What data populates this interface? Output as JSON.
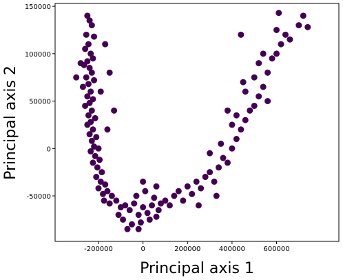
{
  "chart_data": {
    "type": "scatter",
    "xlabel": "Principal axis 1",
    "ylabel": "Principal axis 2",
    "color": "#440154",
    "xlim": [
      -395000,
      880000
    ],
    "ylim": [
      -98000,
      153000
    ],
    "xticks": [
      -200000,
      0,
      200000,
      400000,
      600000
    ],
    "yticks": [
      -50000,
      0,
      50000,
      100000,
      150000
    ],
    "x": [
      -250000,
      -240000,
      -230000,
      -255000,
      -220000,
      -245000,
      -260000,
      -235000,
      -225000,
      -250000,
      -265000,
      -240000,
      -230000,
      -255000,
      -220000,
      -245000,
      -270000,
      -235000,
      -250000,
      -225000,
      -240000,
      -260000,
      -230000,
      -245000,
      -215000,
      -235000,
      -250000,
      -225000,
      -240000,
      -210000,
      -230000,
      -220000,
      -200000,
      -235000,
      -215000,
      -195000,
      -225000,
      -205000,
      -185000,
      -210000,
      -190000,
      -170000,
      -200000,
      -180000,
      -160000,
      -140000,
      -175000,
      -300000,
      -170000,
      -150000,
      -130000,
      -280000,
      -160000,
      -190000,
      -150000,
      -120000,
      -100000,
      -80000,
      -60000,
      -40000,
      -20000,
      0,
      20000,
      40000,
      60000,
      80000,
      100000,
      -90000,
      -50000,
      -10000,
      30000,
      70000,
      -110000,
      -30000,
      10000,
      50000,
      -70000,
      -20000,
      120000,
      0,
      60000,
      140000,
      160000,
      180000,
      200000,
      220000,
      240000,
      260000,
      280000,
      300000,
      320000,
      340000,
      360000,
      300000,
      380000,
      400000,
      420000,
      350000,
      440000,
      400000,
      460000,
      480000,
      420000,
      500000,
      520000,
      460000,
      540000,
      500000,
      560000,
      520000,
      580000,
      600000,
      540000,
      620000,
      600000,
      640000,
      660000,
      700000,
      720000,
      740000,
      610000,
      440000,
      450000,
      380000,
      330000,
      250000,
      560000
    ],
    "y": [
      140000,
      135000,
      130000,
      120000,
      118000,
      110000,
      105000,
      100000,
      95000,
      92000,
      88000,
      85000,
      80000,
      75000,
      72000,
      68000,
      65000,
      60000,
      55000,
      52000,
      48000,
      45000,
      40000,
      35000,
      32000,
      28000,
      25000,
      20000,
      15000,
      12000,
      8000,
      2000,
      0,
      -3000,
      -8000,
      -12000,
      -15000,
      -20000,
      -25000,
      -30000,
      -35000,
      -38000,
      -42000,
      -48000,
      -45000,
      -50000,
      -55000,
      75000,
      110000,
      80000,
      40000,
      90000,
      20000,
      60000,
      -58000,
      -55000,
      -62000,
      -60000,
      -65000,
      -58000,
      -70000,
      -62000,
      -68000,
      -60000,
      -72000,
      -58000,
      -55000,
      -75000,
      -80000,
      -78000,
      -75000,
      -65000,
      -70000,
      -50000,
      -45000,
      -52000,
      -85000,
      -85000,
      -60000,
      -35000,
      -40000,
      -50000,
      -45000,
      -55000,
      -40000,
      -48000,
      -35000,
      -42000,
      -30000,
      -25000,
      -35000,
      -20000,
      -10000,
      -5000,
      -15000,
      0,
      10000,
      5000,
      20000,
      25000,
      30000,
      40000,
      35000,
      45000,
      55000,
      60000,
      65000,
      75000,
      80000,
      90000,
      95000,
      100000,
      100000,
      110000,
      125000,
      120000,
      115000,
      130000,
      140000,
      128000,
      143000,
      120000,
      70000,
      40000,
      -50000,
      -60000,
      50000
    ]
  }
}
